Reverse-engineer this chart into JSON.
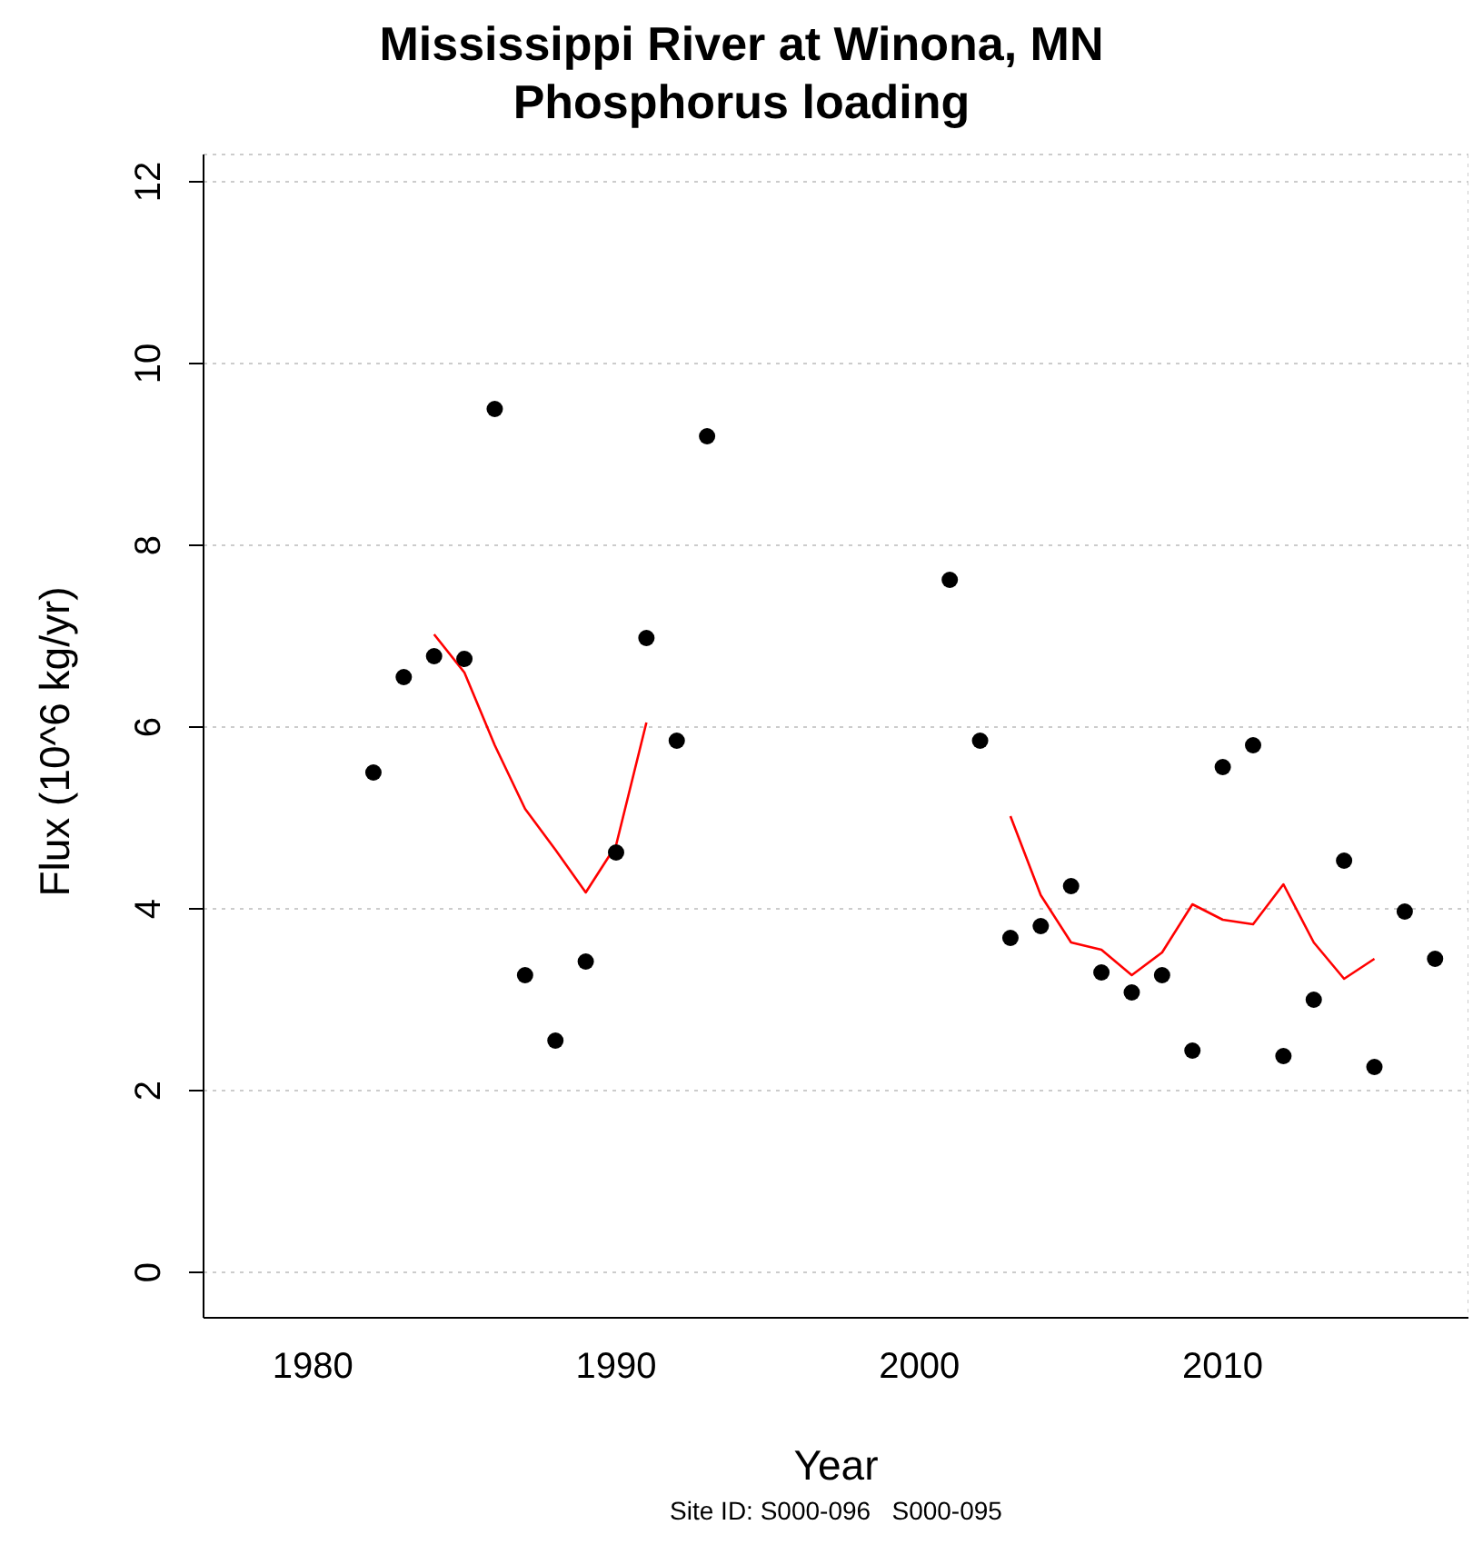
{
  "chart_data": {
    "type": "scatter",
    "title": "Mississippi River at Winona, MN\nPhosphorus loading",
    "xlabel": "Year",
    "ylabel": "Flux (10^6 kg/yr)",
    "annotations": [
      "Site ID: S000-096   S000-095"
    ],
    "series": [
      {
        "color": "#000000",
        "x": [
          1982,
          1983,
          1984,
          1985,
          1986,
          1987,
          1988,
          1989,
          1990,
          1991,
          1992,
          1993,
          2001,
          2002,
          2003,
          2004,
          2005,
          2006,
          2007,
          2008,
          2009,
          2010,
          2011,
          2012,
          2013,
          2014,
          2015,
          2016,
          2017
        ],
        "values": [
          5.5,
          6.55,
          6.78,
          6.75,
          9.5,
          3.27,
          2.55,
          3.42,
          4.62,
          6.98,
          5.85,
          9.2,
          7.62,
          5.85,
          3.68,
          3.81,
          4.25,
          3.3,
          3.08,
          3.27,
          2.44,
          5.56,
          5.8,
          2.38,
          3.0,
          4.53,
          2.26,
          3.97,
          3.45
        ]
      },
      {
        "type": "line",
        "marker": "none",
        "color": "#ff0000",
        "x": [
          1984,
          1985,
          1986,
          1987,
          1988,
          1989,
          1990,
          1991
        ],
        "values": [
          7.02,
          6.6,
          5.8,
          5.1,
          4.65,
          4.18,
          4.7,
          6.05
        ]
      },
      {
        "type": "line",
        "marker": "none",
        "color": "#ff0000",
        "x": [
          2003,
          2004,
          2005,
          2006,
          2007,
          2008,
          2009,
          2010,
          2011,
          2012,
          2013,
          2014,
          2015
        ],
        "values": [
          5.02,
          4.15,
          3.63,
          3.55,
          3.27,
          3.52,
          4.05,
          3.88,
          3.83,
          4.27,
          3.63,
          3.23,
          3.45
        ]
      }
    ],
    "xlim": [
      1976.4,
      2018.1
    ],
    "xticks": [
      1980,
      1990,
      2000,
      2010
    ],
    "ylim": [
      -0.5,
      12.3
    ],
    "yticks": [
      0,
      2,
      4,
      6,
      8,
      10,
      12
    ],
    "grid": true,
    "marker": "circle",
    "line_style": "solid"
  }
}
